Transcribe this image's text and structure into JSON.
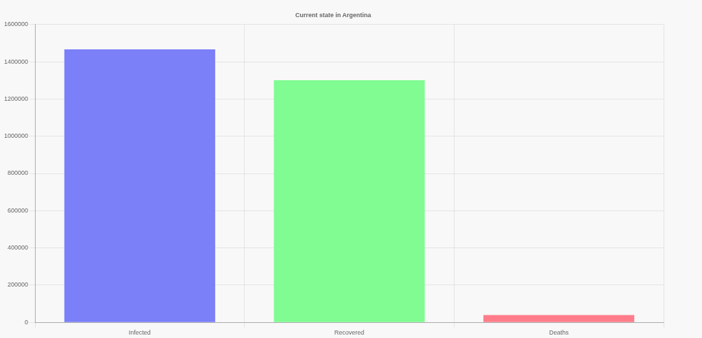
{
  "chart_data": {
    "type": "bar",
    "title": "Current state in Argentina",
    "categories": [
      "Infected",
      "Recovered",
      "Deaths"
    ],
    "values": [
      1467000,
      1301000,
      39000
    ],
    "colors": [
      "#7b80f8",
      "#80fc92",
      "#ff7d8a"
    ],
    "ylim": [
      0,
      1600000
    ],
    "yticks": [
      0,
      200000,
      400000,
      600000,
      800000,
      1000000,
      1200000,
      1400000,
      1600000
    ],
    "grid": true
  }
}
